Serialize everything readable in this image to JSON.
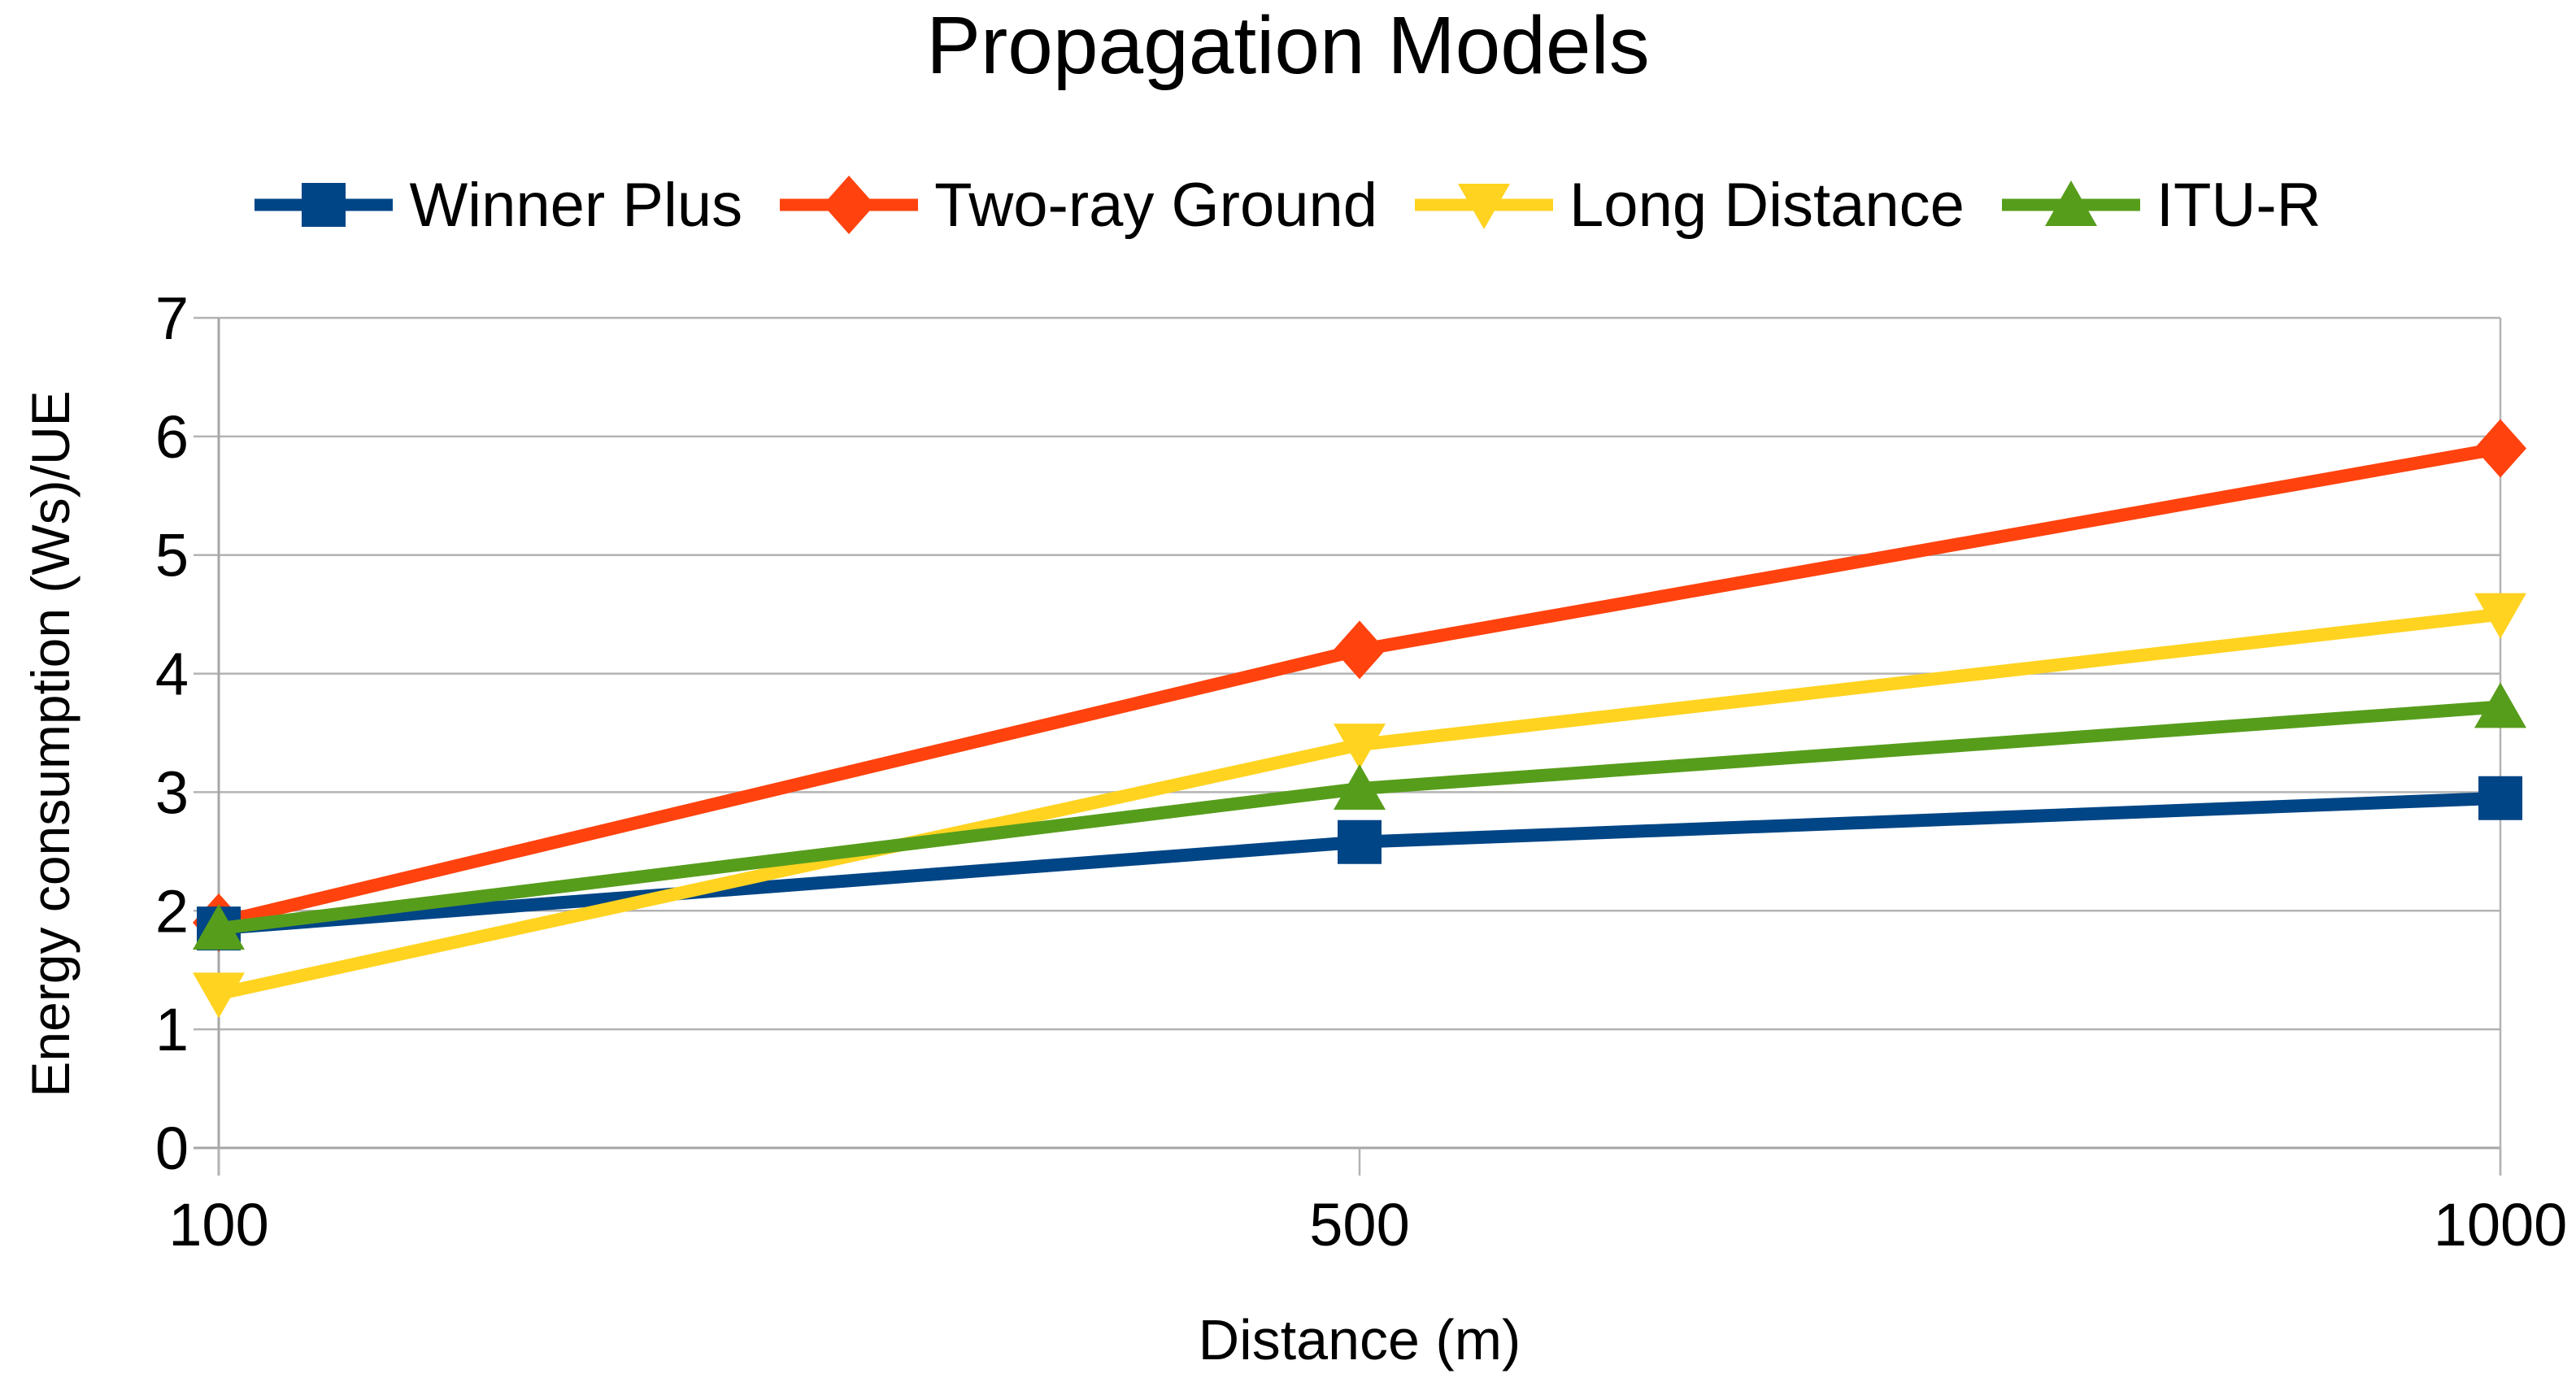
{
  "chart_data": {
    "type": "line",
    "title": "Propagation Models",
    "xlabel": "Distance (m)",
    "ylabel": "Energy consumption (Ws)/UE",
    "categories": [
      "100",
      "500",
      "1000"
    ],
    "x_axis_type": "category-equal-spacing",
    "ylim": [
      0,
      7
    ],
    "y_ticks": [
      0,
      1,
      2,
      3,
      4,
      5,
      6,
      7
    ],
    "grid": "horizontal",
    "legend_position": "top-center",
    "background_color": "#ffffff",
    "gridline_color": "#b3b3b3",
    "axis_line_color": "#a6a6a6",
    "text_color": "#000000",
    "series": [
      {
        "name": "Winner Plus",
        "color": "#004586",
        "marker": "square",
        "values": [
          1.85,
          2.58,
          2.95
        ]
      },
      {
        "name": "Two-ray Ground",
        "color": "#FF420E",
        "marker": "diamond",
        "values": [
          1.9,
          4.2,
          5.9
        ]
      },
      {
        "name": "Long Distance",
        "color": "#FFD320",
        "marker": "triangle-down",
        "values": [
          1.3,
          3.4,
          4.5
        ]
      },
      {
        "name": "ITU-R",
        "color": "#579D1C",
        "marker": "triangle-up",
        "values": [
          1.85,
          3.03,
          3.72
        ]
      }
    ]
  }
}
